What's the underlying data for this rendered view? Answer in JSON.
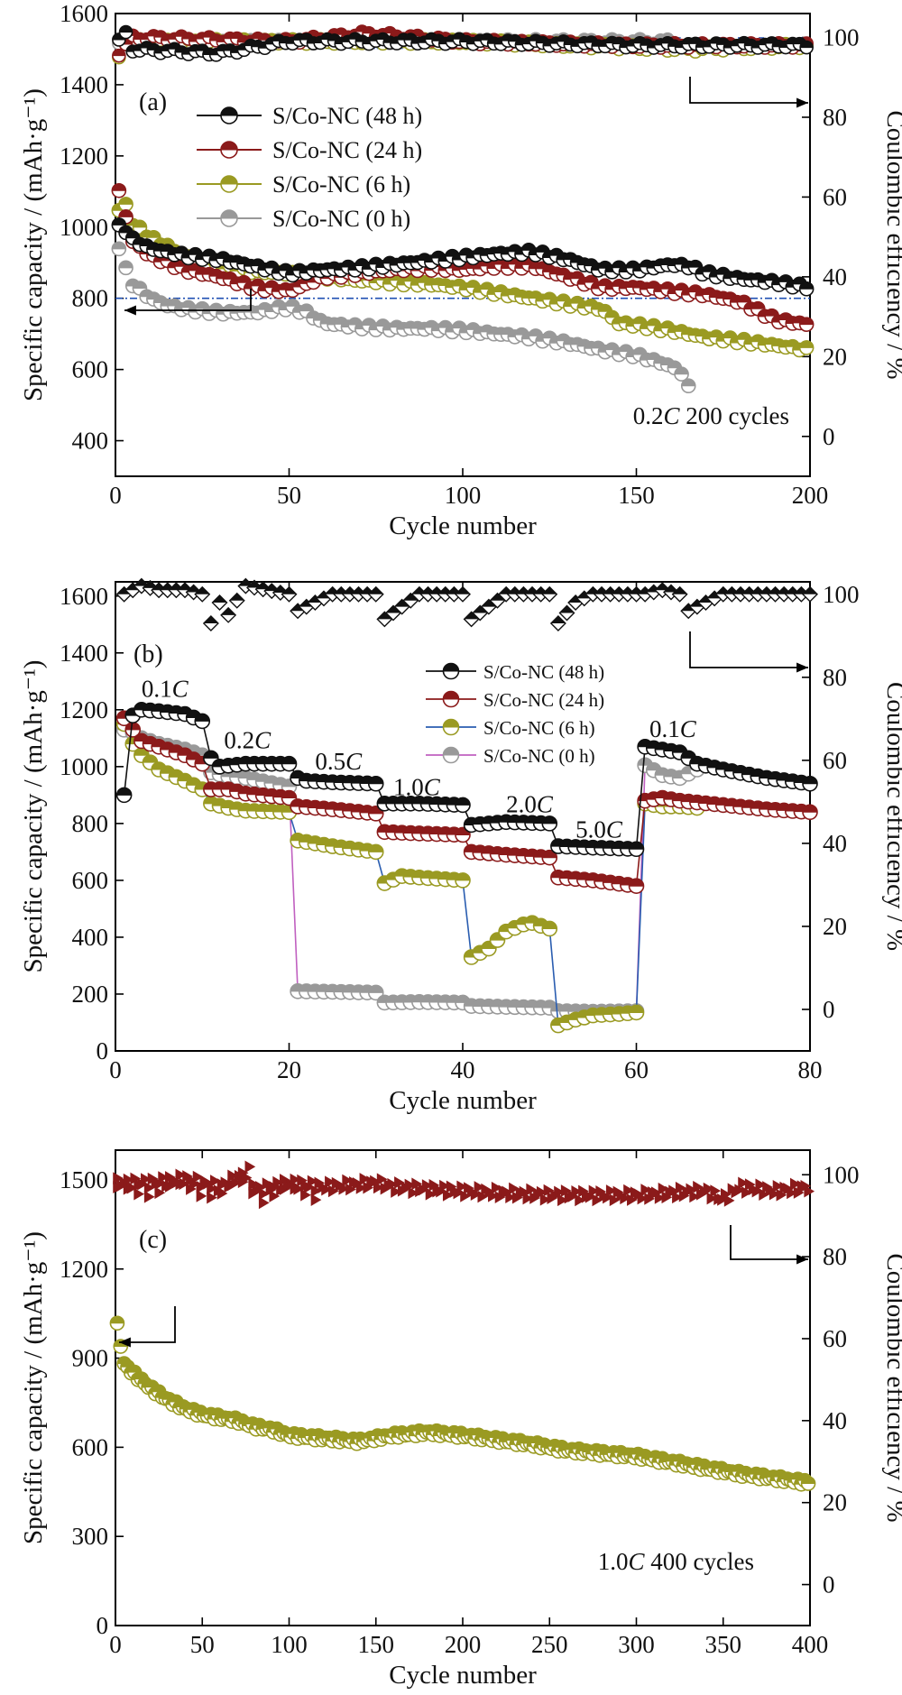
{
  "colors": {
    "s48": "#111111",
    "s24": "#8b1a1a",
    "s6": "#9a9a22",
    "s0": "#999999",
    "s6_line_b": "#2a5db0",
    "s0_line_b": "#c060c0",
    "ce_a_bar": "#1f4fb3",
    "ce_c": "#8b1a1a",
    "ref_line": "#1f4fb3"
  },
  "chart_data": [
    {
      "type": "scatter",
      "panel_label": "(a)",
      "xlabel": "Cycle number",
      "ylabel": "Specific capacity / (mAh·g⁻¹)",
      "y2label": "Coulombic efficiency / %",
      "xlim": [
        0,
        200
      ],
      "ylim": [
        300,
        1600
      ],
      "y2lim": [
        -10,
        106
      ],
      "xticks": [
        "0",
        "50",
        "100",
        "150",
        "200"
      ],
      "yticks": [
        "400",
        "600",
        "800",
        "1000",
        "1200",
        "1400",
        "1600"
      ],
      "y2ticks": [
        "0",
        "20",
        "40",
        "60",
        "80",
        "100"
      ],
      "annotation": "0.2C 200 cycles",
      "legend_position": "top-left",
      "reference_line_y": 800,
      "series": [
        {
          "name": "S/Co-NC (48 h)",
          "color_key": "s48",
          "capacity": {
            "x": [
              1,
              3,
              5,
              10,
              15,
              20,
              30,
              40,
              50,
              60,
              70,
              80,
              90,
              100,
              110,
              120,
              130,
              140,
              150,
              160,
              165,
              170,
              180,
              190,
              200
            ],
            "y": [
              1000,
              990,
              965,
              940,
              930,
              920,
              910,
              890,
              870,
              880,
              885,
              895,
              905,
              915,
              925,
              930,
              910,
              880,
              880,
              895,
              890,
              870,
              855,
              845,
              830
            ]
          },
          "ce": {
            "x": [
              1,
              3,
              5,
              30,
              50,
              100,
              150,
              200
            ],
            "y": [
              99,
              101,
              97,
              96,
              99,
              99,
              98,
              98
            ]
          }
        },
        {
          "name": "S/Co-NC (24 h)",
          "color_key": "s24",
          "capacity": {
            "x": [
              1,
              3,
              5,
              10,
              20,
              30,
              40,
              50,
              60,
              70,
              80,
              90,
              100,
              110,
              120,
              130,
              140,
              150,
              160,
              170,
              180,
              190,
              200
            ],
            "y": [
              1100,
              1030,
              960,
              920,
              880,
              860,
              830,
              820,
              860,
              870,
              880,
              885,
              880,
              890,
              890,
              860,
              830,
              830,
              820,
              810,
              790,
              740,
              725
            ]
          },
          "ce": {
            "x": [
              1,
              5,
              50,
              72,
              100,
              150,
              200
            ],
            "y": [
              96,
              100,
              99,
              101,
              99,
              98,
              98
            ]
          }
        },
        {
          "name": "S/Co-NC (6 h)",
          "color_key": "s6",
          "capacity": {
            "x": [
              1,
              3,
              5,
              10,
              20,
              30,
              40,
              50,
              60,
              70,
              80,
              90,
              100,
              110,
              120,
              130,
              140,
              145,
              150,
              160,
              170,
              180,
              190,
              200
            ],
            "y": [
              1050,
              1060,
              1010,
              970,
              920,
              890,
              875,
              870,
              860,
              850,
              845,
              840,
              830,
              815,
              800,
              785,
              770,
              730,
              725,
              710,
              690,
              680,
              668,
              655
            ]
          },
          "ce": {
            "x": [
              1,
              3,
              50,
              100,
              165,
              200
            ],
            "y": [
              95,
              99,
              99,
              99,
              97,
              98
            ]
          }
        },
        {
          "name": "S/Co-NC (0 h)",
          "color_key": "s0",
          "capacity": {
            "x": [
              1,
              3,
              5,
              10,
              15,
              20,
              30,
              40,
              50,
              55,
              60,
              70,
              80,
              90,
              100,
              110,
              120,
              130,
              140,
              150,
              155,
              160,
              163,
              165
            ],
            "y": [
              945,
              880,
              840,
              800,
              780,
              770,
              760,
              760,
              775,
              760,
              730,
              720,
              715,
              715,
              710,
              700,
              690,
              675,
              655,
              640,
              625,
              610,
              590,
              550
            ]
          },
          "ce": {
            "x": [
              1,
              50,
              100,
              160
            ],
            "y": [
              98,
              99,
              99,
              99
            ]
          }
        }
      ]
    },
    {
      "type": "line",
      "panel_label": "(b)",
      "xlabel": "Cycle number",
      "ylabel": "Specific capacity / (mAh·g⁻¹)",
      "y2label": "Coulombic efficiency / %",
      "xlim": [
        0,
        80
      ],
      "ylim": [
        0,
        1650
      ],
      "y2lim": [
        -10,
        103
      ],
      "xticks": [
        "0",
        "20",
        "40",
        "60",
        "80"
      ],
      "yticks": [
        "0",
        "200",
        "400",
        "600",
        "800",
        "1000",
        "1200",
        "1400",
        "1600"
      ],
      "y2ticks": [
        "0",
        "20",
        "40",
        "60",
        "80",
        "100"
      ],
      "rate_labels": [
        {
          "text": "0.1C",
          "x": 3,
          "y": 1245
        },
        {
          "text": "0.2C",
          "x": 12.5,
          "y": 1065
        },
        {
          "text": "0.5C",
          "x": 23,
          "y": 990
        },
        {
          "text": "1.0C",
          "x": 32,
          "y": 900
        },
        {
          "text": "2.0C",
          "x": 45,
          "y": 840
        },
        {
          "text": "5.0C",
          "x": 53,
          "y": 750
        },
        {
          "text": "0.1C",
          "x": 61.5,
          "y": 1105
        }
      ],
      "legend_position": "top-right",
      "series": [
        {
          "name": "S/Co-NC (48 h)",
          "color_key": "s48",
          "line_color_key": "s48",
          "x": [
            1,
            2,
            3,
            5,
            8,
            10,
            11,
            12,
            15,
            20,
            21,
            22,
            25,
            30,
            31,
            35,
            40,
            41,
            45,
            50,
            51,
            55,
            60,
            61,
            63,
            65,
            67,
            70,
            75,
            80
          ],
          "y": [
            900,
            1180,
            1200,
            1195,
            1185,
            1160,
            1030,
            1000,
            1010,
            1010,
            960,
            950,
            945,
            940,
            870,
            870,
            865,
            795,
            805,
            800,
            720,
            715,
            710,
            1070,
            1060,
            1050,
            1010,
            990,
            960,
            940
          ]
        },
        {
          "name": "S/Co-NC (24 h)",
          "color_key": "s24",
          "line_color_key": "s24",
          "x": [
            1,
            2,
            3,
            5,
            8,
            10,
            11,
            13,
            15,
            20,
            21,
            25,
            30,
            31,
            35,
            40,
            41,
            45,
            50,
            51,
            55,
            60,
            61,
            63,
            65,
            70,
            75,
            80
          ],
          "y": [
            1170,
            1130,
            1090,
            1070,
            1040,
            1010,
            920,
            920,
            905,
            890,
            860,
            850,
            835,
            770,
            765,
            760,
            700,
            690,
            680,
            610,
            600,
            580,
            880,
            890,
            880,
            865,
            850,
            840
          ]
        },
        {
          "name": "S/Co-NC (6 h)",
          "color_key": "s6",
          "line_color_key": "s6_line_b",
          "x": [
            1,
            2,
            3,
            5,
            8,
            10,
            11,
            13,
            15,
            20,
            21,
            25,
            30,
            31,
            33,
            35,
            40,
            41,
            43,
            45,
            47,
            48,
            50,
            51,
            53,
            55,
            58,
            60,
            61,
            63,
            65,
            67
          ],
          "y": [
            1150,
            1080,
            1040,
            990,
            950,
            920,
            870,
            855,
            845,
            840,
            740,
            720,
            700,
            590,
            615,
            610,
            600,
            330,
            360,
            420,
            445,
            450,
            430,
            90,
            110,
            125,
            130,
            135,
            870,
            860,
            860,
            855
          ]
        },
        {
          "name": "S/Co-NC (0 h)",
          "color_key": "s0",
          "line_color_key": "s0_line_b",
          "x": [
            1,
            2,
            3,
            5,
            8,
            10,
            11,
            13,
            15,
            20,
            21,
            25,
            30,
            31,
            35,
            40,
            41,
            45,
            50,
            51,
            55,
            60,
            61,
            63,
            65,
            67
          ],
          "y": [
            1130,
            1120,
            1100,
            1080,
            1060,
            1040,
            980,
            965,
            960,
            930,
            210,
            208,
            205,
            170,
            172,
            170,
            158,
            155,
            152,
            140,
            138,
            140,
            1005,
            970,
            960,
            990
          ]
        }
      ],
      "ce": {
        "x": [
          1,
          3,
          5,
          8,
          10,
          11,
          12,
          13,
          15,
          20,
          21,
          25,
          30,
          31,
          35,
          40,
          41,
          45,
          50,
          51,
          53,
          55,
          60,
          61,
          63,
          65,
          66,
          70,
          75,
          80
        ],
        "y": [
          100,
          102,
          101,
          101,
          100,
          93,
          98,
          95,
          102,
          100,
          96,
          100,
          100,
          94,
          100,
          100,
          94,
          100,
          100,
          93,
          98,
          100,
          100,
          100,
          101,
          100,
          96,
          100,
          100,
          100
        ]
      }
    },
    {
      "type": "scatter",
      "panel_label": "(c)",
      "xlabel": "Cycle number",
      "ylabel": "Specific capacity / (mAh·g⁻¹)",
      "y2label": "Coulombic efficiency / %",
      "xlim": [
        0,
        400
      ],
      "ylim": [
        0,
        1600
      ],
      "y2lim": [
        -10,
        106
      ],
      "xticks": [
        "0",
        "50",
        "100",
        "150",
        "200",
        "250",
        "300",
        "350",
        "400"
      ],
      "yticks": [
        "0",
        "300",
        "600",
        "900",
        "1200",
        "1500"
      ],
      "y2ticks": [
        "0",
        "20",
        "40",
        "60",
        "80",
        "100"
      ],
      "annotation": "1.0C 400 cycles",
      "series": [
        {
          "name": "capacity",
          "color_key": "s6",
          "x": [
            1,
            5,
            10,
            20,
            30,
            40,
            50,
            60,
            70,
            80,
            90,
            100,
            120,
            140,
            160,
            180,
            200,
            220,
            240,
            260,
            280,
            300,
            320,
            340,
            360,
            380,
            400
          ],
          "y": [
            1010,
            880,
            850,
            800,
            760,
            730,
            710,
            700,
            690,
            670,
            660,
            640,
            630,
            620,
            640,
            650,
            640,
            625,
            610,
            590,
            580,
            570,
            550,
            530,
            510,
            495,
            480
          ]
        },
        {
          "name": "coulombic efficiency",
          "color_key": "ce_c",
          "x": [
            1,
            20,
            40,
            60,
            78,
            80,
            100,
            120,
            150,
            160,
            200,
            250,
            300,
            340,
            350,
            360,
            380,
            400
          ],
          "y": [
            98,
            98,
            99,
            97,
            101,
            96,
            98,
            97,
            98,
            97,
            96,
            95,
            95,
            96,
            94,
            97,
            96,
            97
          ]
        }
      ]
    }
  ]
}
